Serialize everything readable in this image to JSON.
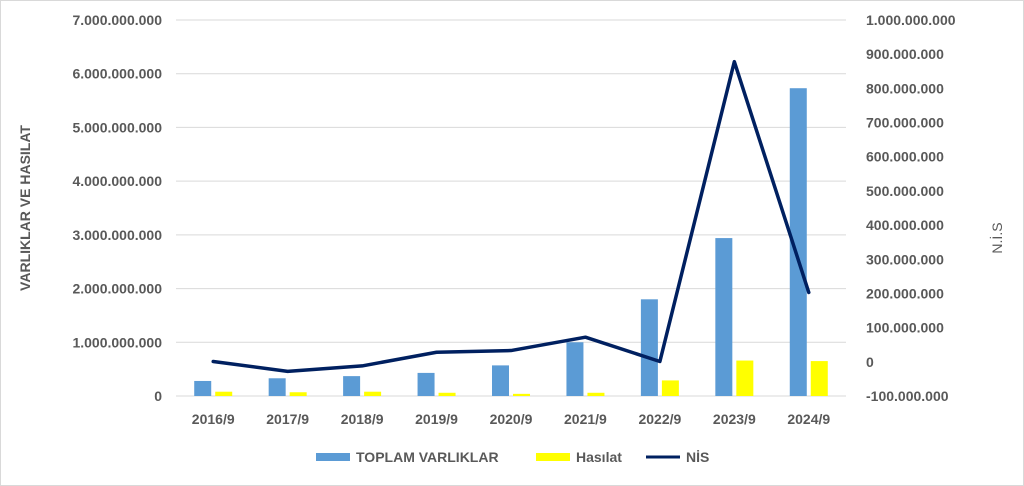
{
  "chart_data": {
    "type": "bar",
    "categories": [
      "2016/9",
      "2017/9",
      "2018/9",
      "2019/9",
      "2020/9",
      "2021/9",
      "2022/9",
      "2023/9",
      "2024/9"
    ],
    "series": [
      {
        "name": "TOPLAM VARLIKLAR",
        "type": "bar",
        "axis": "left",
        "color": "#5b9bd5",
        "values": [
          280000000,
          330000000,
          370000000,
          430000000,
          570000000,
          1000000000,
          1800000000,
          2940000000,
          5730000000
        ]
      },
      {
        "name": "Hasılat",
        "type": "bar",
        "axis": "left",
        "color": "#ffff00",
        "values": [
          80000000,
          70000000,
          80000000,
          60000000,
          40000000,
          60000000,
          290000000,
          660000000,
          650000000
        ]
      },
      {
        "name": "NİS",
        "type": "line",
        "axis": "right",
        "color": "#002060",
        "values": [
          1000000,
          -28000000,
          -12000000,
          28000000,
          33000000,
          72000000,
          1000000,
          878000000,
          203000000
        ]
      }
    ],
    "ylabel": "VARLIKLAR VE HASILAT",
    "y2label": "N.İ.S",
    "ylim": [
      0,
      7000000000
    ],
    "y2lim": [
      -100000000,
      1000000000
    ],
    "yticks": [
      "0",
      "1.000.000.000",
      "2.000.000.000",
      "3.000.000.000",
      "4.000.000.000",
      "5.000.000.000",
      "6.000.000.000",
      "7.000.000.000"
    ],
    "y2ticks": [
      "-100.000.000",
      "0",
      "100.000.000",
      "200.000.000",
      "300.000.000",
      "400.000.000",
      "500.000.000",
      "600.000.000",
      "700.000.000",
      "800.000.000",
      "900.000.000",
      "1.000.000.000"
    ],
    "grid": true,
    "legend_position": "bottom"
  }
}
